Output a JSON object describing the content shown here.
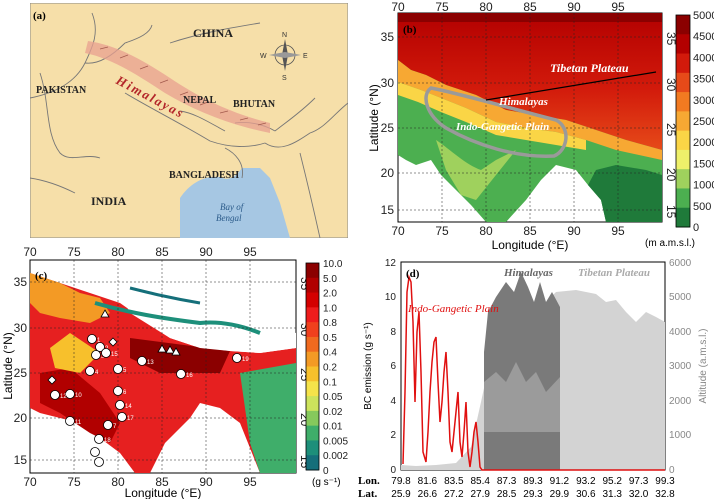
{
  "panel_a": {
    "label": "(a)",
    "countries": {
      "china": "CHINA",
      "pakistan": "PAKISTAN",
      "nepal": "NEPAL",
      "bhutan": "BHUTAN",
      "bangladesh": "BANGLADESH",
      "india": "INDIA"
    },
    "range": "Himalayas",
    "sea": [
      "Bay of",
      "Bengal"
    ],
    "compass": {
      "n": "N",
      "s": "S",
      "e": "E",
      "w": "W"
    }
  },
  "panel_b": {
    "label": "(b)",
    "xlabel": "Longitude (°E)",
    "ylabel": "Latitude (°N)",
    "x_ticks": [
      "70",
      "75",
      "80",
      "85",
      "90",
      "95"
    ],
    "y_ticks": [
      "15",
      "20",
      "25",
      "30",
      "35"
    ],
    "regions": {
      "tibet": "Tibetan Plateau",
      "himalaya": "Himalayas",
      "igp": "Indo-Gangetic Plain"
    },
    "colorbar": {
      "ticks": [
        "5000",
        "4500",
        "4000",
        "3500",
        "3000",
        "2500",
        "2000",
        "1500",
        "1000",
        "500",
        "0"
      ],
      "colors": [
        "#8b0000",
        "#b30000",
        "#d21a0b",
        "#e64a19",
        "#f27a21",
        "#f7a833",
        "#fad546",
        "#eef06a",
        "#9fd15d",
        "#4caf50",
        "#1f7a3a"
      ],
      "unit": "(m a.m.s.l.)"
    }
  },
  "panel_c": {
    "label": "(c)",
    "xlabel": "Longitude (°E)",
    "ylabel": "Latitude (°N)",
    "x_ticks": [
      "70",
      "75",
      "80",
      "85",
      "90",
      "95"
    ],
    "y_ticks": [
      "15",
      "20",
      "25",
      "30",
      "35"
    ],
    "colorbar": {
      "ticks": [
        "10.0",
        "5.0",
        "2.0",
        "1.0",
        "0.8",
        "0.5",
        "0.4",
        "0.2",
        "0.1",
        "0.05",
        "0.02",
        "0.01",
        "0.005",
        "0.002",
        "0"
      ],
      "colors": [
        "#8b0000",
        "#b10000",
        "#d40000",
        "#ee1c1c",
        "#f0401d",
        "#f06a1f",
        "#f39a25",
        "#f7c02c",
        "#f5e34a",
        "#cde35c",
        "#86c95c",
        "#3fae6a",
        "#1d8f7a",
        "#156f7a"
      ],
      "unit": "(g s⁻¹)"
    },
    "site_numbers": [
      "1",
      "2",
      "3",
      "4",
      "5",
      "6",
      "7",
      "8",
      "9",
      "10",
      "11",
      "12",
      "13",
      "14",
      "15",
      "16",
      "17",
      "18",
      "19"
    ]
  },
  "panel_d": {
    "label": "(d)",
    "ylabel_left": "BC emission (g s⁻¹)",
    "ylabel_right": "Altitude (a.m.s.l.)",
    "left_ticks": [
      "0",
      "2",
      "4",
      "6",
      "8",
      "10",
      "12"
    ],
    "right_ticks": [
      "0",
      "1000",
      "2000",
      "3000",
      "4000",
      "5000",
      "6000"
    ],
    "lon_label": "Lon.",
    "lat_label": "Lat.",
    "lon_ticks": [
      "79.8",
      "81.6",
      "83.5",
      "85.4",
      "87.3",
      "89.3",
      "91.2",
      "93.2",
      "95.2",
      "97.3",
      "99.3"
    ],
    "lat_ticks": [
      "25.9",
      "26.6",
      "27.2",
      "27.9",
      "28.5",
      "29.3",
      "29.9",
      "30.6",
      "31.3",
      "32.0",
      "32.8"
    ],
    "regions": {
      "igp": "Indo-Gangetic Plain",
      "himalaya": "Himalayas",
      "tibet": "Tibetan Plateau"
    }
  }
}
